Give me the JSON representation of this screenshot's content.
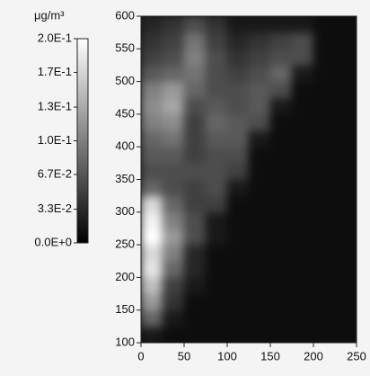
{
  "chart_data": {
    "type": "heatmap",
    "x_bins": [
      0,
      25,
      50,
      75,
      100,
      125,
      150,
      175,
      200,
      225,
      250
    ],
    "y_bins": [
      100,
      125,
      150,
      175,
      200,
      225,
      250,
      275,
      300,
      325,
      350,
      375,
      400,
      425,
      450,
      475,
      500,
      525,
      550,
      575,
      600
    ],
    "z": [
      [
        0.02,
        0.01,
        0.01,
        0.01,
        0.01,
        0.01,
        0.01,
        0.01,
        0.01,
        0.01
      ],
      [
        0.08,
        0.02,
        0.01,
        0.01,
        0.01,
        0.01,
        0.01,
        0.01,
        0.01,
        0.01
      ],
      [
        0.12,
        0.04,
        0.01,
        0.01,
        0.01,
        0.01,
        0.01,
        0.01,
        0.01,
        0.01
      ],
      [
        0.15,
        0.05,
        0.02,
        0.01,
        0.01,
        0.01,
        0.01,
        0.01,
        0.01,
        0.01
      ],
      [
        0.18,
        0.08,
        0.03,
        0.01,
        0.01,
        0.01,
        0.01,
        0.01,
        0.01,
        0.01
      ],
      [
        0.17,
        0.1,
        0.03,
        0.01,
        0.01,
        0.01,
        0.01,
        0.01,
        0.01,
        0.01
      ],
      [
        0.2,
        0.12,
        0.06,
        0.02,
        0.01,
        0.01,
        0.01,
        0.01,
        0.01,
        0.01
      ],
      [
        0.19,
        0.1,
        0.06,
        0.02,
        0.01,
        0.01,
        0.01,
        0.01,
        0.01,
        0.01
      ],
      [
        0.17,
        0.08,
        0.05,
        0.05,
        0.01,
        0.01,
        0.01,
        0.01,
        0.01,
        0.01
      ],
      [
        0.08,
        0.06,
        0.05,
        0.06,
        0.02,
        0.01,
        0.01,
        0.01,
        0.01,
        0.01
      ],
      [
        0.06,
        0.06,
        0.06,
        0.06,
        0.05,
        0.01,
        0.01,
        0.01,
        0.01,
        0.01
      ],
      [
        0.07,
        0.07,
        0.05,
        0.06,
        0.06,
        0.01,
        0.01,
        0.01,
        0.01,
        0.01
      ],
      [
        0.08,
        0.09,
        0.05,
        0.07,
        0.07,
        0.02,
        0.01,
        0.01,
        0.01,
        0.01
      ],
      [
        0.1,
        0.11,
        0.05,
        0.08,
        0.07,
        0.06,
        0.01,
        0.01,
        0.01,
        0.01
      ],
      [
        0.11,
        0.13,
        0.06,
        0.07,
        0.06,
        0.07,
        0.02,
        0.01,
        0.01,
        0.01
      ],
      [
        0.1,
        0.12,
        0.08,
        0.06,
        0.06,
        0.07,
        0.06,
        0.01,
        0.01,
        0.01
      ],
      [
        0.07,
        0.08,
        0.09,
        0.06,
        0.05,
        0.06,
        0.08,
        0.02,
        0.01,
        0.01
      ],
      [
        0.05,
        0.06,
        0.1,
        0.06,
        0.04,
        0.05,
        0.06,
        0.06,
        0.01,
        0.01
      ],
      [
        0.04,
        0.05,
        0.09,
        0.05,
        0.03,
        0.04,
        0.05,
        0.06,
        0.01,
        0.01
      ],
      [
        0.03,
        0.04,
        0.06,
        0.04,
        0.02,
        0.02,
        0.02,
        0.02,
        0.01,
        0.01
      ]
    ],
    "xlim": [
      0,
      250
    ],
    "xticks": [
      0,
      50,
      100,
      150,
      200,
      250
    ],
    "ylim": [
      100,
      600
    ],
    "yticks": [
      100,
      150,
      200,
      250,
      300,
      350,
      400,
      450,
      500,
      550,
      600
    ],
    "colormap": [
      "#000000",
      "#ffffff"
    ],
    "colorbar": {
      "label": "μg/m³",
      "lim": [
        0,
        0.2
      ],
      "ticks": [
        {
          "value": 0.2,
          "label": "2.0E-1"
        },
        {
          "value": 0.167,
          "label": "1.7E-1"
        },
        {
          "value": 0.133,
          "label": "1.3E-1"
        },
        {
          "value": 0.1,
          "label": "1.0E-1"
        },
        {
          "value": 0.067,
          "label": "6.7E-2"
        },
        {
          "value": 0.033,
          "label": "3.3E-2"
        },
        {
          "value": 0,
          "label": "0.0E+0"
        }
      ]
    }
  }
}
